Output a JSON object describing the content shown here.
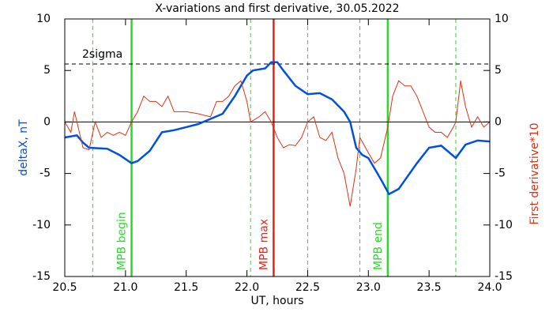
{
  "chart_data": {
    "type": "line",
    "title": "X-variations and first derivative, 30.05.2022",
    "x_label": "UT, hours",
    "y_label": "deltaX, nT",
    "y2_label": "First derivative*10",
    "xlim": [
      20.5,
      24.0
    ],
    "xticks": [
      {
        "value": 20.5,
        "label": "20.5"
      },
      {
        "value": 21,
        "label": "21.0"
      },
      {
        "value": 21.5,
        "label": "21.5"
      },
      {
        "value": 22,
        "label": "22.0"
      },
      {
        "value": 22.5,
        "label": "22.5"
      },
      {
        "value": 23,
        "label": "23.0"
      },
      {
        "value": 23.5,
        "label": "23.5"
      },
      {
        "value": 24,
        "label": "24.0"
      }
    ],
    "ylim": [
      -15,
      10
    ],
    "yticks": [
      10,
      5,
      0,
      -5,
      -10,
      -15
    ],
    "y2lim": [
      -15,
      10
    ],
    "y2ticks": [
      10,
      5,
      0,
      -5,
      -10,
      -15
    ],
    "series": [
      {
        "color": "#0050e0",
        "axis": "y",
        "x": [
          20.5,
          20.6,
          20.65,
          20.7,
          20.85,
          20.95,
          21.05,
          21.1,
          21.2,
          21.3,
          21.4,
          21.5,
          21.6,
          21.7,
          21.8,
          21.9,
          22.0,
          22.05,
          22.15,
          22.2,
          22.25,
          22.3,
          22.4,
          22.5,
          22.6,
          22.7,
          22.8,
          22.85,
          22.9,
          22.95,
          23.0,
          23.1,
          23.17,
          23.25,
          23.4,
          23.5,
          23.6,
          23.72,
          23.8,
          23.9,
          24.0
        ],
        "values": [
          -1.5,
          -1.3,
          -2.0,
          -2.5,
          -2.6,
          -3.2,
          -4.0,
          -3.8,
          -2.8,
          -1.0,
          -0.8,
          -0.5,
          -0.2,
          0.3,
          0.8,
          2.5,
          4.5,
          5.0,
          5.2,
          5.8,
          5.8,
          5.0,
          3.5,
          2.7,
          2.8,
          2.2,
          1.0,
          0,
          -2.5,
          -3.2,
          -3.5,
          -5.5,
          -7.0,
          -6.5,
          -4.0,
          -2.5,
          -2.3,
          -3.5,
          -2.2,
          -1.8,
          -1.9
        ]
      },
      {
        "color": "#e03010",
        "axis": "y2",
        "x": [
          20.5,
          20.55,
          20.58,
          20.62,
          20.65,
          20.7,
          20.75,
          20.8,
          20.85,
          20.9,
          20.95,
          21.0,
          21.05,
          21.1,
          21.15,
          21.2,
          21.25,
          21.3,
          21.35,
          21.4,
          21.5,
          21.6,
          21.7,
          21.75,
          21.8,
          21.85,
          21.9,
          21.95,
          22.0,
          22.03,
          22.1,
          22.15,
          22.2,
          22.25,
          22.3,
          22.35,
          22.4,
          22.45,
          22.5,
          22.55,
          22.6,
          22.65,
          22.7,
          22.75,
          22.8,
          22.85,
          22.9,
          22.93,
          23.0,
          23.05,
          23.1,
          23.16,
          23.2,
          23.25,
          23.3,
          23.35,
          23.4,
          23.45,
          23.5,
          23.55,
          23.6,
          23.65,
          23.7,
          23.72,
          23.76,
          23.8,
          23.85,
          23.9,
          23.95,
          24.0
        ],
        "values": [
          0,
          -1,
          1,
          -1,
          -2.5,
          -2.7,
          0,
          -1.5,
          -1,
          -1.3,
          -1,
          -1.3,
          0,
          1,
          2.5,
          2.0,
          2.0,
          1.5,
          2.5,
          1.0,
          1.0,
          0.8,
          0.5,
          2.0,
          2.0,
          2.5,
          3.5,
          4.0,
          2.0,
          0,
          0.5,
          1.0,
          0,
          -1.5,
          -2.5,
          -2.2,
          -2.3,
          -1.5,
          0,
          0.5,
          -1.5,
          -1.8,
          -1.0,
          -3.5,
          -5.0,
          -8.2,
          -4.5,
          -1.5,
          -3.0,
          -4.0,
          -3.5,
          -0.5,
          2.5,
          4.0,
          3.5,
          3.5,
          2.5,
          1.0,
          -0.5,
          -1.0,
          -1.0,
          -1.5,
          -0.5,
          0,
          4.0,
          1.5,
          -0.5,
          0.5,
          -0.5,
          0
        ]
      }
    ],
    "hlines": [
      {
        "y": 5.63,
        "label": "2sigma",
        "color": "#000000",
        "style": "dashed"
      },
      {
        "y": 0,
        "color": "#000000",
        "style": "solid"
      }
    ],
    "vlines": [
      {
        "x": 20.73,
        "color": "#30d030",
        "style": "dashed"
      },
      {
        "x": 21.05,
        "color": "#20e020",
        "style": "solid",
        "label": "MPB begin"
      },
      {
        "x": 22.03,
        "color": "#30d030",
        "style": "dashed"
      },
      {
        "x": 22.22,
        "color": "#f02010",
        "style": "solid",
        "label": "MPB max"
      },
      {
        "x": 22.5,
        "color": "#30d030",
        "style": "dashed"
      },
      {
        "x": 22.93,
        "color": "#30d030",
        "style": "dashed"
      },
      {
        "x": 23.16,
        "color": "#20e020",
        "style": "solid",
        "label": "MPB end"
      },
      {
        "x": 23.72,
        "color": "#30d030",
        "style": "dashed"
      }
    ]
  }
}
